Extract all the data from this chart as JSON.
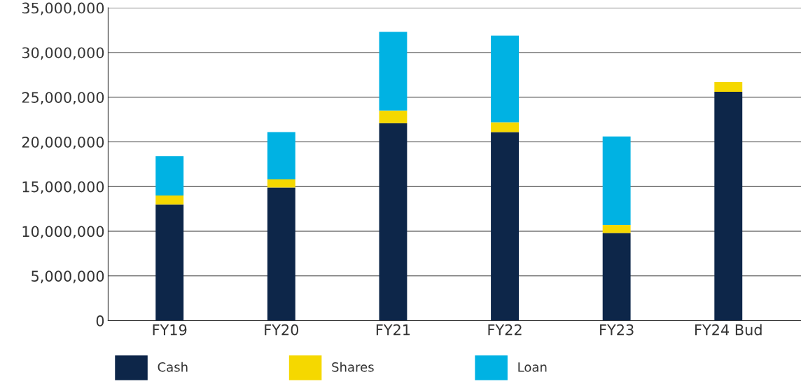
{
  "chart_data": {
    "type": "bar",
    "stacked": true,
    "categories": [
      "FY19",
      "FY20",
      "FY21",
      "FY22",
      "FY23",
      "FY24 Bud"
    ],
    "series": [
      {
        "name": "Cash",
        "color": "#0d2649",
        "values": [
          13000000,
          14900000,
          22100000,
          21100000,
          9800000,
          25600000
        ]
      },
      {
        "name": "Shares",
        "color": "#f5d800",
        "values": [
          1000000,
          900000,
          1400000,
          1100000,
          900000,
          1100000
        ]
      },
      {
        "name": "Loan",
        "color": "#00b2e3",
        "values": [
          4400000,
          5300000,
          8800000,
          9700000,
          9900000,
          null
        ]
      }
    ],
    "ylim": [
      0,
      35000000
    ],
    "yticks": [
      0,
      {
        "value": 5000000,
        "label": "5,000,000"
      },
      {
        "value": 10000000,
        "label": "10,000,000"
      },
      {
        "value": 15000000,
        "label": "15,000,000"
      },
      {
        "value": 20000000,
        "label": "20,000,000"
      },
      {
        "value": 25000000,
        "label": "25,000,000"
      },
      {
        "value": 30000000,
        "label": "30,000,000"
      },
      {
        "value": 35000000,
        "label": "35,000,000"
      }
    ],
    "grid": "y",
    "legend": "bottom"
  }
}
